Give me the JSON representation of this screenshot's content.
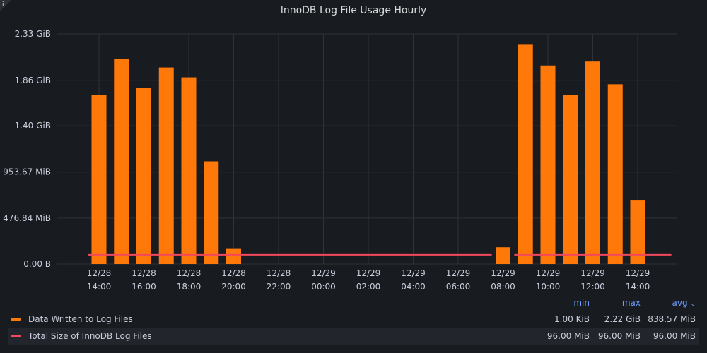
{
  "panel": {
    "title": "InnoDB Log File Usage Hourly",
    "info_icon": "info-icon"
  },
  "chart_data": {
    "type": "bar",
    "title": "InnoDB Log File Usage Hourly",
    "y_ticks": [
      "2.33 GiB",
      "1.86 GiB",
      "1.40 GiB",
      "953.67 MiB",
      "476.84 MiB",
      "0.00 B"
    ],
    "y_tick_values_gib": [
      2.33,
      1.86,
      1.4,
      0.9313,
      0.4657,
      0
    ],
    "ylim_gib": [
      0,
      2.33
    ],
    "x_ticks": [
      {
        "date": "12/28",
        "time": "14:00"
      },
      {
        "date": "12/28",
        "time": "16:00"
      },
      {
        "date": "12/28",
        "time": "18:00"
      },
      {
        "date": "12/28",
        "time": "20:00"
      },
      {
        "date": "12/28",
        "time": "22:00"
      },
      {
        "date": "12/29",
        "time": "00:00"
      },
      {
        "date": "12/29",
        "time": "02:00"
      },
      {
        "date": "12/29",
        "time": "04:00"
      },
      {
        "date": "12/29",
        "time": "06:00"
      },
      {
        "date": "12/29",
        "time": "08:00"
      },
      {
        "date": "12/29",
        "time": "10:00"
      },
      {
        "date": "12/29",
        "time": "12:00"
      },
      {
        "date": "12/29",
        "time": "14:00"
      }
    ],
    "grid": true,
    "legend_placement": "bottom",
    "series": [
      {
        "name": "Data Written to Log Files",
        "type": "bar",
        "color": "#ff780a",
        "x": [
          "12/28 14:00",
          "12/28 15:00",
          "12/28 16:00",
          "12/28 17:00",
          "12/28 18:00",
          "12/28 19:00",
          "12/28 20:00",
          "12/29 08:00",
          "12/29 09:00",
          "12/29 10:00",
          "12/29 11:00",
          "12/29 12:00",
          "12/29 13:00",
          "12/29 14:00"
        ],
        "values_gib": [
          1.71,
          2.08,
          1.78,
          1.99,
          1.89,
          1.04,
          0.16,
          0.17,
          2.22,
          2.01,
          1.71,
          2.05,
          1.82,
          0.65
        ],
        "min": "1.00 KiB",
        "max": "2.22 GiB",
        "avg": "838.57 MiB"
      },
      {
        "name": "Total Size of InnoDB Log Files",
        "type": "line",
        "color": "#f2495c",
        "segments": [
          {
            "from": "12/28 13:30",
            "to": "12/29 07:30",
            "value_gib": 0.09375
          },
          {
            "from": "12/29 08:30",
            "to": "12/29 15:30",
            "value_gib": 0.09375
          }
        ],
        "min": "96.00 MiB",
        "max": "96.00 MiB",
        "avg": "96.00 MiB"
      }
    ]
  },
  "legend": {
    "headers": {
      "min": "min",
      "max": "max",
      "avg": "avg"
    },
    "sort_icon": "chevron-down-icon"
  }
}
